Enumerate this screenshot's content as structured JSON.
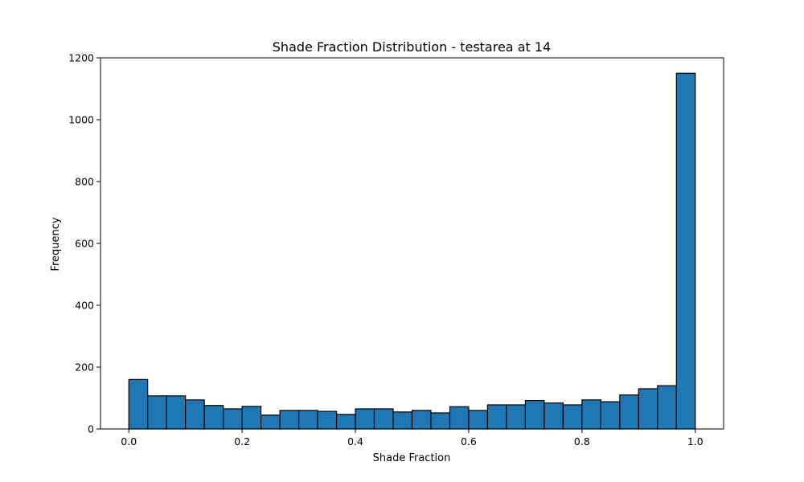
{
  "chart_data": {
    "type": "bar",
    "title": "Shade Fraction Distribution - testarea at 14",
    "xlabel": "Shade Fraction",
    "ylabel": "Frequency",
    "xlim": [
      -0.05,
      1.05
    ],
    "ylim": [
      0,
      1200
    ],
    "x_ticks": [
      {
        "value": 0.0,
        "label": "0.0"
      },
      {
        "value": 0.2,
        "label": "0.2"
      },
      {
        "value": 0.4,
        "label": "0.4"
      },
      {
        "value": 0.6,
        "label": "0.6"
      },
      {
        "value": 0.8,
        "label": "0.8"
      },
      {
        "value": 1.0,
        "label": "1.0"
      }
    ],
    "y_ticks": [
      {
        "value": 0,
        "label": "0"
      },
      {
        "value": 200,
        "label": "200"
      },
      {
        "value": 400,
        "label": "400"
      },
      {
        "value": 600,
        "label": "600"
      },
      {
        "value": 800,
        "label": "800"
      },
      {
        "value": 1000,
        "label": "1000"
      },
      {
        "value": 1200,
        "label": "1200"
      }
    ],
    "bin_edges": [
      0.0,
      0.0333,
      0.0667,
      0.1,
      0.1333,
      0.1667,
      0.2,
      0.2333,
      0.2667,
      0.3,
      0.3333,
      0.3667,
      0.4,
      0.4333,
      0.4667,
      0.5,
      0.5333,
      0.5667,
      0.6,
      0.6333,
      0.6667,
      0.7,
      0.7333,
      0.7667,
      0.8,
      0.8333,
      0.8667,
      0.9,
      0.9333,
      0.9667,
      1.0
    ],
    "values": [
      160,
      107,
      107,
      94,
      76,
      65,
      73,
      45,
      60,
      60,
      57,
      47,
      65,
      65,
      55,
      60,
      52,
      72,
      60,
      78,
      78,
      92,
      84,
      78,
      94,
      88,
      110,
      130,
      140,
      1150
    ],
    "grid": false,
    "colors": {
      "bar": "#1f77b4",
      "edge": "#000000"
    }
  }
}
